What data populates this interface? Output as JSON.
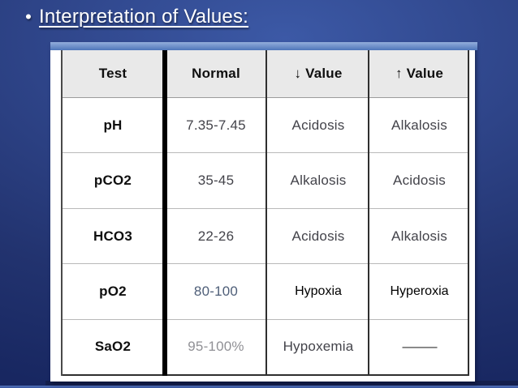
{
  "slide": {
    "bullet_glyph": "•",
    "title": "Interpretation of Values:"
  },
  "table": {
    "headers": [
      "Test",
      "Normal",
      "↓ Value",
      "↑ Value"
    ],
    "rows": [
      {
        "test": "pH",
        "normal": "7.35-7.45",
        "low": "Acidosis",
        "high": "Alkalosis"
      },
      {
        "test": "pCO2",
        "normal": "35-45",
        "low": "Alkalosis",
        "high": "Acidosis"
      },
      {
        "test": "HCO3",
        "normal": "22-26",
        "low": "Acidosis",
        "high": "Alkalosis"
      },
      {
        "test": "pO2",
        "normal": "80-100",
        "low": "Hypoxia",
        "high": "Hyperoxia"
      },
      {
        "test": "SaO2",
        "normal": "95-100%",
        "low": "Hypoxemia",
        "high": "———"
      }
    ]
  },
  "colors": {
    "background_center": "#3c59a6",
    "background_edge": "#182761",
    "panel_accent_top": "#93aedb",
    "panel_accent_bottom": "#4f76ba",
    "header_bg": "#e9e9e9",
    "thick_divider": "#000000",
    "title_text": "#ffffff",
    "value_text": "#43434a",
    "slate_value_text": "#4e5e78",
    "muted_value_text": "#909095"
  }
}
